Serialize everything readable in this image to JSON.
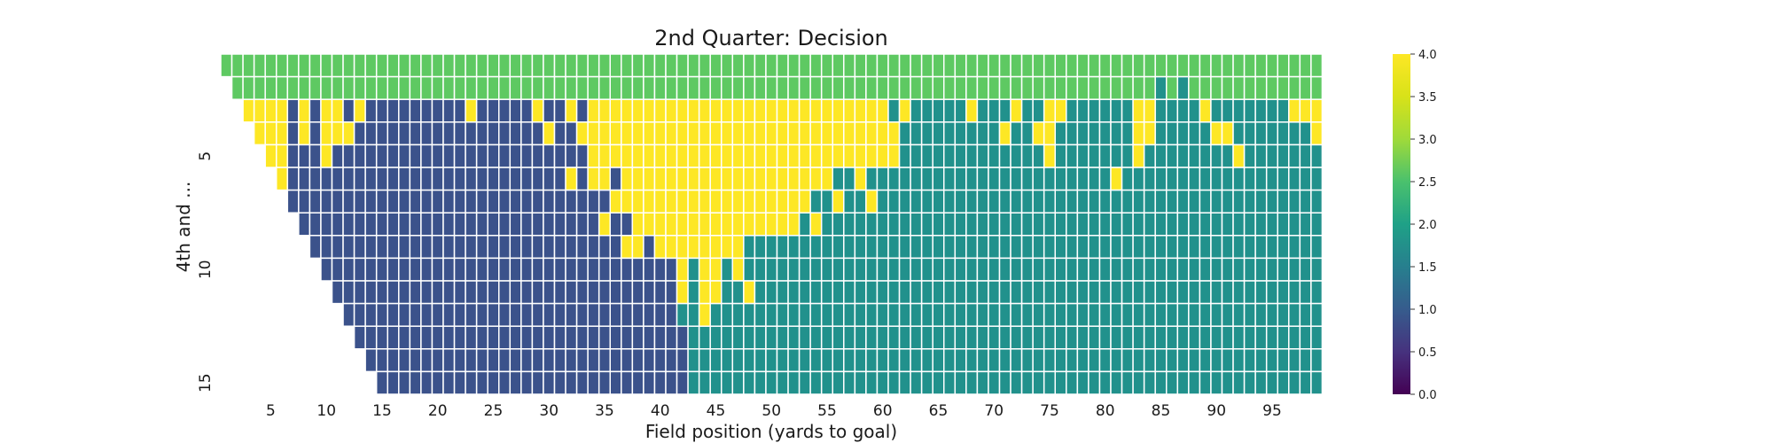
{
  "chart_data": {
    "type": "heatmap",
    "title": "2nd Quarter: Decision",
    "xlabel": "Field position (yards to goal)",
    "ylabel": "4th and ...",
    "x": [
      1,
      2,
      3,
      4,
      5,
      6,
      7,
      8,
      9,
      10,
      11,
      12,
      13,
      14,
      15,
      16,
      17,
      18,
      19,
      20,
      21,
      22,
      23,
      24,
      25,
      26,
      27,
      28,
      29,
      30,
      31,
      32,
      33,
      34,
      35,
      36,
      37,
      38,
      39,
      40,
      41,
      42,
      43,
      44,
      45,
      46,
      47,
      48,
      49,
      50,
      51,
      52,
      53,
      54,
      55,
      56,
      57,
      58,
      59,
      60,
      61,
      62,
      63,
      64,
      65,
      66,
      67,
      68,
      69,
      70,
      71,
      72,
      73,
      74,
      75,
      76,
      77,
      78,
      79,
      80,
      81,
      82,
      83,
      84,
      85,
      86,
      87,
      88,
      89,
      90,
      91,
      92,
      93,
      94,
      95,
      96,
      97,
      98,
      99
    ],
    "y": [
      1,
      2,
      3,
      4,
      5,
      6,
      7,
      8,
      9,
      10,
      11,
      12,
      13,
      14,
      15
    ],
    "x_tick_labels": [
      "5",
      "10",
      "15",
      "20",
      "25",
      "30",
      "35",
      "40",
      "45",
      "50",
      "55",
      "60",
      "65",
      "70",
      "75",
      "80",
      "85",
      "90",
      "95"
    ],
    "y_tick_labels": [
      "5",
      "10",
      "15"
    ],
    "colorbar": {
      "min": 0.0,
      "max": 4.0,
      "ticks": [
        "0.0",
        "0.5",
        "1.0",
        "1.5",
        "2.0",
        "2.5",
        "3.0",
        "3.5",
        "4.0"
      ]
    },
    "colorscale": "viridis",
    "grid": false,
    "note_values": "values per row start at x = row number (yards to goal >= distance); only 1, 2, 3, 4 occur",
    "rows": [
      [
        3,
        3,
        3,
        3,
        3,
        3,
        3,
        3,
        3,
        3,
        3,
        3,
        3,
        3,
        3,
        3,
        3,
        3,
        3,
        3,
        3,
        3,
        3,
        3,
        3,
        3,
        3,
        3,
        3,
        3,
        3,
        3,
        3,
        3,
        3,
        3,
        3,
        3,
        3,
        3,
        3,
        3,
        3,
        3,
        3,
        3,
        3,
        3,
        3,
        3,
        3,
        3,
        3,
        3,
        3,
        3,
        3,
        3,
        3,
        3,
        3,
        3,
        3,
        3,
        3,
        3,
        3,
        3,
        3,
        3,
        3,
        3,
        3,
        3,
        3,
        3,
        3,
        3,
        3,
        3,
        3,
        3,
        3,
        3,
        3,
        3,
        3,
        3,
        3,
        3,
        3,
        3,
        3,
        3,
        3,
        3,
        3,
        3,
        3
      ],
      [
        3,
        3,
        3,
        3,
        3,
        3,
        3,
        3,
        3,
        3,
        3,
        3,
        3,
        3,
        3,
        3,
        3,
        3,
        3,
        3,
        3,
        3,
        3,
        3,
        3,
        3,
        3,
        3,
        3,
        3,
        3,
        3,
        3,
        3,
        3,
        3,
        3,
        3,
        3,
        3,
        3,
        3,
        3,
        3,
        3,
        3,
        3,
        3,
        3,
        3,
        3,
        3,
        3,
        3,
        3,
        3,
        3,
        3,
        3,
        3,
        3,
        3,
        3,
        3,
        3,
        3,
        3,
        3,
        3,
        3,
        3,
        3,
        3,
        3,
        3,
        3,
        3,
        3,
        3,
        3,
        3,
        3,
        3,
        2,
        3,
        2,
        3,
        3,
        3,
        3,
        3,
        3,
        3,
        3,
        3,
        3,
        3,
        3
      ],
      [
        4,
        4,
        4,
        4,
        1,
        4,
        1,
        4,
        4,
        1,
        4,
        1,
        1,
        1,
        1,
        1,
        1,
        1,
        1,
        1,
        4,
        1,
        1,
        1,
        1,
        1,
        4,
        1,
        1,
        4,
        1,
        4,
        4,
        4,
        4,
        4,
        4,
        4,
        4,
        4,
        4,
        4,
        4,
        4,
        4,
        4,
        4,
        4,
        4,
        4,
        4,
        4,
        4,
        4,
        4,
        4,
        4,
        4,
        2,
        4,
        2,
        2,
        2,
        2,
        2,
        4,
        2,
        2,
        2,
        4,
        2,
        2,
        4,
        4,
        2,
        2,
        2,
        2,
        2,
        2,
        4,
        4,
        2,
        2,
        2,
        2,
        4,
        2,
        2,
        2,
        2,
        2,
        2,
        2,
        4,
        4,
        4
      ],
      [
        4,
        4,
        4,
        1,
        4,
        1,
        4,
        4,
        4,
        1,
        1,
        1,
        1,
        1,
        1,
        1,
        1,
        1,
        1,
        1,
        1,
        1,
        1,
        1,
        1,
        1,
        4,
        1,
        1,
        4,
        4,
        4,
        4,
        4,
        4,
        4,
        4,
        4,
        4,
        4,
        4,
        4,
        4,
        4,
        4,
        4,
        4,
        4,
        4,
        4,
        4,
        4,
        4,
        4,
        4,
        4,
        4,
        4,
        2,
        2,
        2,
        2,
        2,
        2,
        2,
        2,
        2,
        4,
        2,
        2,
        4,
        4,
        2,
        2,
        2,
        2,
        2,
        2,
        2,
        4,
        4,
        2,
        2,
        2,
        2,
        2,
        4,
        4,
        2,
        2,
        2,
        2,
        2,
        2,
        2,
        4
      ],
      [
        4,
        4,
        1,
        1,
        1,
        4,
        1,
        1,
        1,
        1,
        1,
        1,
        1,
        1,
        1,
        1,
        1,
        1,
        1,
        1,
        1,
        1,
        1,
        1,
        1,
        1,
        1,
        1,
        1,
        4,
        4,
        4,
        4,
        4,
        4,
        4,
        4,
        4,
        4,
        4,
        4,
        4,
        4,
        4,
        4,
        4,
        4,
        4,
        4,
        4,
        4,
        4,
        4,
        4,
        4,
        4,
        4,
        2,
        2,
        2,
        2,
        2,
        2,
        2,
        2,
        2,
        2,
        2,
        2,
        2,
        4,
        2,
        2,
        2,
        2,
        2,
        2,
        2,
        4,
        2,
        2,
        2,
        2,
        2,
        2,
        2,
        2,
        4,
        2,
        2,
        2,
        2,
        2,
        2,
        2
      ],
      [
        4,
        1,
        1,
        1,
        1,
        1,
        1,
        1,
        1,
        1,
        1,
        1,
        1,
        1,
        1,
        1,
        1,
        1,
        1,
        1,
        1,
        1,
        1,
        1,
        1,
        1,
        4,
        1,
        4,
        4,
        1,
        4,
        4,
        4,
        4,
        4,
        4,
        4,
        4,
        4,
        4,
        4,
        4,
        4,
        4,
        4,
        4,
        4,
        4,
        4,
        2,
        2,
        4,
        2,
        2,
        2,
        2,
        2,
        2,
        2,
        2,
        2,
        2,
        2,
        2,
        2,
        2,
        2,
        2,
        2,
        2,
        2,
        2,
        2,
        2,
        4,
        2,
        2,
        2,
        2,
        2,
        2,
        2,
        2,
        2,
        2,
        2,
        2,
        2,
        2,
        2,
        2,
        2,
        2
      ],
      [
        1,
        1,
        1,
        1,
        1,
        1,
        1,
        1,
        1,
        1,
        1,
        1,
        1,
        1,
        1,
        1,
        1,
        1,
        1,
        1,
        1,
        1,
        1,
        1,
        1,
        1,
        1,
        1,
        1,
        4,
        4,
        4,
        4,
        4,
        4,
        4,
        4,
        4,
        4,
        4,
        4,
        4,
        4,
        4,
        4,
        4,
        4,
        2,
        2,
        4,
        2,
        2,
        4,
        2,
        2,
        2,
        2,
        2,
        2,
        2,
        2,
        2,
        2,
        2,
        2,
        2,
        2,
        2,
        2,
        2,
        2,
        2,
        2,
        2,
        2,
        2,
        2,
        2,
        2,
        2,
        2,
        2,
        2,
        2,
        2,
        2,
        2,
        2,
        2,
        2,
        2,
        2,
        2
      ],
      [
        1,
        1,
        1,
        1,
        1,
        1,
        1,
        1,
        1,
        1,
        1,
        1,
        1,
        1,
        1,
        1,
        1,
        1,
        1,
        1,
        1,
        1,
        1,
        1,
        1,
        1,
        1,
        4,
        1,
        1,
        4,
        4,
        4,
        4,
        4,
        4,
        4,
        4,
        4,
        4,
        4,
        4,
        4,
        4,
        4,
        2,
        4,
        2,
        2,
        2,
        2,
        2,
        2,
        2,
        2,
        2,
        2,
        2,
        2,
        2,
        2,
        2,
        2,
        2,
        2,
        2,
        2,
        2,
        2,
        2,
        2,
        2,
        2,
        2,
        2,
        2,
        2,
        2,
        2,
        2,
        2,
        2,
        2,
        2,
        2,
        2,
        2,
        2,
        2,
        2,
        2,
        2
      ],
      [
        1,
        1,
        1,
        1,
        1,
        1,
        1,
        1,
        1,
        1,
        1,
        1,
        1,
        1,
        1,
        1,
        1,
        1,
        1,
        1,
        1,
        1,
        1,
        1,
        1,
        1,
        1,
        1,
        4,
        4,
        1,
        4,
        4,
        4,
        4,
        4,
        4,
        4,
        4,
        2,
        2,
        2,
        2,
        2,
        2,
        2,
        2,
        2,
        2,
        2,
        2,
        2,
        2,
        2,
        2,
        2,
        2,
        2,
        2,
        2,
        2,
        2,
        2,
        2,
        2,
        2,
        2,
        2,
        2,
        2,
        2,
        2,
        2,
        2,
        2,
        2,
        2,
        2,
        2,
        2,
        2,
        2,
        2,
        2,
        2,
        2,
        2,
        2,
        2,
        2,
        2
      ],
      [
        1,
        1,
        1,
        1,
        1,
        1,
        1,
        1,
        1,
        1,
        1,
        1,
        1,
        1,
        1,
        1,
        1,
        1,
        1,
        1,
        1,
        1,
        1,
        1,
        1,
        1,
        1,
        1,
        1,
        1,
        1,
        1,
        4,
        2,
        4,
        4,
        2,
        4,
        2,
        2,
        2,
        2,
        2,
        2,
        2,
        2,
        2,
        2,
        2,
        2,
        2,
        2,
        2,
        2,
        2,
        2,
        2,
        2,
        2,
        2,
        2,
        2,
        2,
        2,
        2,
        2,
        2,
        2,
        2,
        2,
        2,
        2,
        2,
        2,
        2,
        2,
        2,
        2,
        2,
        2,
        2,
        2,
        2,
        2,
        2,
        2,
        2,
        2,
        2,
        2
      ],
      [
        1,
        1,
        1,
        1,
        1,
        1,
        1,
        1,
        1,
        1,
        1,
        1,
        1,
        1,
        1,
        1,
        1,
        1,
        1,
        1,
        1,
        1,
        1,
        1,
        1,
        1,
        1,
        1,
        1,
        1,
        1,
        4,
        2,
        4,
        4,
        2,
        2,
        4,
        2,
        2,
        2,
        2,
        2,
        2,
        2,
        2,
        2,
        2,
        2,
        2,
        2,
        2,
        2,
        2,
        2,
        2,
        2,
        2,
        2,
        2,
        2,
        2,
        2,
        2,
        2,
        2,
        2,
        2,
        2,
        2,
        2,
        2,
        2,
        2,
        2,
        2,
        2,
        2,
        2,
        2,
        2,
        2,
        2,
        2,
        2,
        2,
        2,
        2,
        2
      ],
      [
        1,
        1,
        1,
        1,
        1,
        1,
        1,
        1,
        1,
        1,
        1,
        1,
        1,
        1,
        1,
        1,
        1,
        1,
        1,
        1,
        1,
        1,
        1,
        1,
        1,
        1,
        1,
        1,
        1,
        1,
        2,
        2,
        4,
        2,
        2,
        2,
        2,
        2,
        2,
        2,
        2,
        2,
        2,
        2,
        2,
        2,
        2,
        2,
        2,
        2,
        2,
        2,
        2,
        2,
        2,
        2,
        2,
        2,
        2,
        2,
        2,
        2,
        2,
        2,
        2,
        2,
        2,
        2,
        2,
        2,
        2,
        2,
        2,
        2,
        2,
        2,
        2,
        2,
        2,
        2,
        2,
        2,
        2,
        2,
        2,
        2,
        2,
        2
      ],
      [
        1,
        1,
        1,
        1,
        1,
        1,
        1,
        1,
        1,
        1,
        1,
        1,
        1,
        1,
        1,
        1,
        1,
        1,
        1,
        1,
        1,
        1,
        1,
        1,
        1,
        1,
        1,
        1,
        1,
        1,
        2,
        2,
        2,
        2,
        2,
        2,
        2,
        2,
        2,
        2,
        2,
        2,
        2,
        2,
        2,
        2,
        2,
        2,
        2,
        2,
        2,
        2,
        2,
        2,
        2,
        2,
        2,
        2,
        2,
        2,
        2,
        2,
        2,
        2,
        2,
        2,
        2,
        2,
        2,
        2,
        2,
        2,
        2,
        2,
        2,
        2,
        2,
        2,
        2,
        2,
        2,
        2,
        2,
        2,
        2,
        2,
        2
      ],
      [
        1,
        1,
        1,
        1,
        1,
        1,
        1,
        1,
        1,
        1,
        1,
        1,
        1,
        1,
        1,
        1,
        1,
        1,
        1,
        1,
        1,
        1,
        1,
        1,
        1,
        1,
        1,
        1,
        1,
        2,
        2,
        2,
        2,
        2,
        2,
        2,
        2,
        2,
        2,
        2,
        2,
        2,
        2,
        2,
        2,
        2,
        2,
        2,
        2,
        2,
        2,
        2,
        2,
        2,
        2,
        2,
        2,
        2,
        2,
        2,
        2,
        2,
        2,
        2,
        2,
        2,
        2,
        2,
        2,
        2,
        2,
        2,
        2,
        2,
        2,
        2,
        2,
        2,
        2,
        2,
        2,
        2,
        2,
        2,
        2,
        2
      ],
      [
        1,
        1,
        1,
        1,
        1,
        1,
        1,
        1,
        1,
        1,
        1,
        1,
        1,
        1,
        1,
        1,
        1,
        1,
        1,
        1,
        1,
        1,
        1,
        1,
        1,
        1,
        1,
        1,
        2,
        2,
        2,
        2,
        2,
        2,
        2,
        2,
        2,
        2,
        2,
        2,
        2,
        2,
        2,
        2,
        2,
        2,
        2,
        2,
        2,
        2,
        2,
        2,
        2,
        2,
        2,
        2,
        2,
        2,
        2,
        2,
        2,
        2,
        2,
        2,
        2,
        2,
        2,
        2,
        2,
        2,
        2,
        2,
        2,
        2,
        2,
        2,
        2,
        2,
        2,
        2,
        2,
        2,
        2,
        2,
        2
      ]
    ]
  }
}
